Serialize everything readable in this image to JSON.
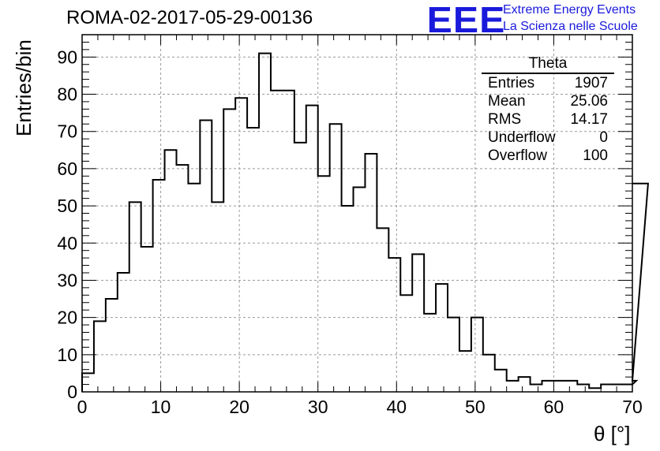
{
  "header": {
    "title": "ROMA-02-2017-05-29-00136",
    "logo_text": "EEE",
    "logo_line1": "Extreme Energy Events",
    "logo_line2": "La Scienza nelle Scuole"
  },
  "stats": {
    "title": "Theta",
    "rows": [
      {
        "label": "Entries",
        "value": "1907"
      },
      {
        "label": "Mean",
        "value": "25.06"
      },
      {
        "label": "RMS",
        "value": "14.17"
      },
      {
        "label": "Underflow",
        "value": "0"
      },
      {
        "label": "Overflow",
        "value": "100"
      }
    ]
  },
  "chart_data": {
    "type": "histogram",
    "title": "ROMA-02-2017-05-29-00136",
    "xlabel": "θ [°]",
    "ylabel": "Entries/bin",
    "xlim": [
      0,
      70
    ],
    "ylim": [
      0,
      96
    ],
    "bin_width": 1.5,
    "bin_edges_start": 0,
    "x_ticks": [
      0,
      10,
      20,
      30,
      40,
      50,
      60,
      70
    ],
    "y_ticks": [
      0,
      10,
      20,
      30,
      40,
      50,
      60,
      70,
      80,
      90
    ],
    "grid": true,
    "line_color": "#000000",
    "values": [
      5,
      19,
      25,
      32,
      51,
      39,
      57,
      65,
      61,
      56,
      73,
      51,
      76,
      79,
      71,
      91,
      81,
      81,
      67,
      77,
      58,
      72,
      50,
      55,
      64,
      44,
      36,
      26,
      37,
      21,
      29,
      20,
      11,
      20,
      10,
      6,
      3,
      4,
      2,
      3,
      3,
      3,
      2,
      1,
      2,
      2,
      2,
      3,
      56
    ]
  }
}
